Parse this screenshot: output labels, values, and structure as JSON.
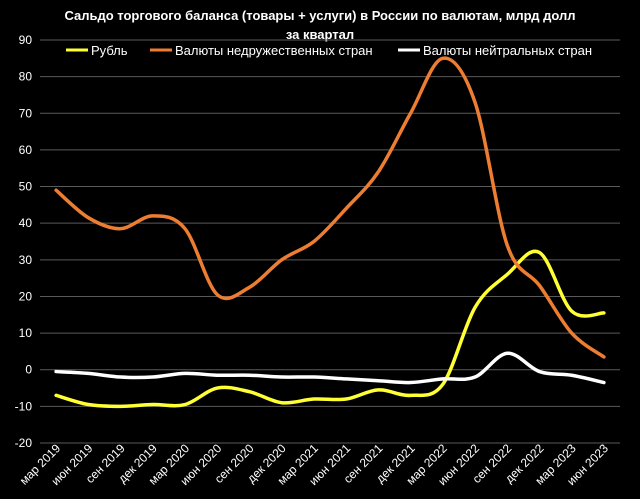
{
  "chart_data": {
    "type": "line",
    "title_lines": [
      "Сальдо торгового баланса (товары + услуги) в России по валютам, млрд долл",
      "за квартал"
    ],
    "xlabel": "",
    "ylabel": "",
    "ylim": [
      -20,
      90
    ],
    "yticks": [
      -20,
      -10,
      0,
      10,
      20,
      30,
      40,
      50,
      60,
      70,
      80,
      90
    ],
    "grid": true,
    "legend_position": "top",
    "categories": [
      "мар 2019",
      "июн 2019",
      "сен 2019",
      "дек 2019",
      "мар 2020",
      "июн 2020",
      "сен 2020",
      "дек 2020",
      "мар 2021",
      "июн 2021",
      "сен 2021",
      "дек 2021",
      "мар 2022",
      "июн 2022",
      "сен 2022",
      "дек 2022",
      "мар 2023",
      "июн 2023"
    ],
    "series": [
      {
        "name": "Рубль",
        "color": "#ffff33",
        "values": [
          -7,
          -9.5,
          -10,
          -9.5,
          -9.5,
          -5,
          -6,
          -9,
          -8,
          -8,
          -5.5,
          -7,
          -4,
          17,
          26,
          32,
          16,
          15.5
        ]
      },
      {
        "name": "Валюты недружественных стран",
        "color": "#ed7d31",
        "values": [
          49,
          41.5,
          38.5,
          42,
          38.5,
          20.5,
          22.5,
          30,
          35,
          44,
          54,
          70,
          85,
          73,
          34,
          23,
          10,
          3.5
        ]
      },
      {
        "name": "Валюты нейтральных стран",
        "color": "#ffffff",
        "values": [
          -0.5,
          -1,
          -2,
          -2,
          -1,
          -1.5,
          -1.5,
          -2,
          -2,
          -2.5,
          -3,
          -3.5,
          -2.5,
          -2,
          4.5,
          -0.5,
          -1.5,
          -3.5
        ]
      }
    ]
  }
}
